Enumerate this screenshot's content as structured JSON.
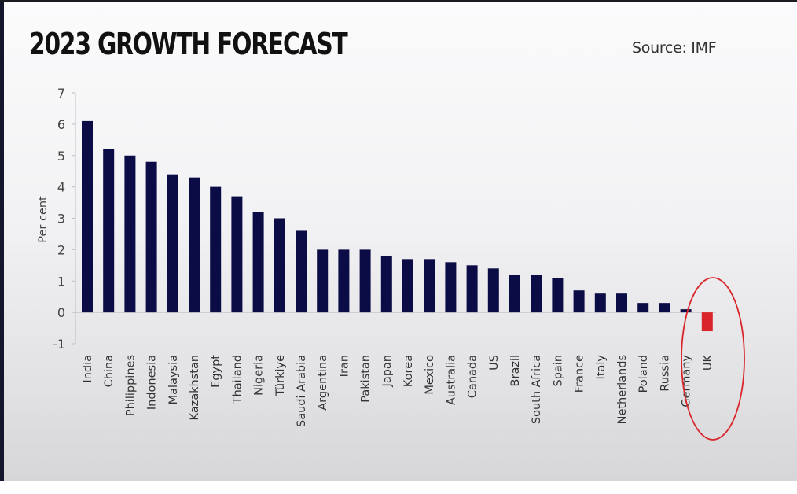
{
  "title": "2023 GROWTH FORECAST",
  "source": "Source: IMF",
  "colors": {
    "bar": "#0b0b45",
    "negative_bar": "#d9252a",
    "highlight_ellipse": "#d9252a",
    "axis": "#bdbdc2"
  },
  "chart_data": {
    "type": "bar",
    "title": "2023 GROWTH FORECAST",
    "xlabel": "",
    "ylabel": "Per cent",
    "ylim": [
      -1,
      7
    ],
    "yticks": [
      "7",
      "6",
      "5",
      "4",
      "3",
      "2",
      "1",
      "0",
      "-1"
    ],
    "ytick_values": [
      7,
      6,
      5,
      4,
      3,
      2,
      1,
      0,
      -1
    ],
    "grid": false,
    "categories": [
      "India",
      "China",
      "Philippines",
      "Indonesia",
      "Malaysia",
      "Kazakhstan",
      "Egypt",
      "Thailand",
      "Nigeria",
      "Türkiye",
      "Saudi Arabia",
      "Argentina",
      "Iran",
      "Pakistan",
      "Japan",
      "Korea",
      "Mexico",
      "Australia",
      "Canada",
      "US",
      "Brazil",
      "South Africa",
      "Spain",
      "France",
      "Italy",
      "Netherlands",
      "Poland",
      "Russia",
      "Germany",
      "UK"
    ],
    "values": [
      6.1,
      5.2,
      5.0,
      4.8,
      4.4,
      4.3,
      4.0,
      3.7,
      3.2,
      3.0,
      2.6,
      2.0,
      2.0,
      2.0,
      1.8,
      1.7,
      1.7,
      1.6,
      1.5,
      1.4,
      1.2,
      1.2,
      1.1,
      0.7,
      0.6,
      0.6,
      0.3,
      0.3,
      0.1,
      -0.6
    ],
    "highlighted": [
      "Germany",
      "UK"
    ],
    "annotations": [
      "red ellipse circling Germany and UK"
    ]
  }
}
